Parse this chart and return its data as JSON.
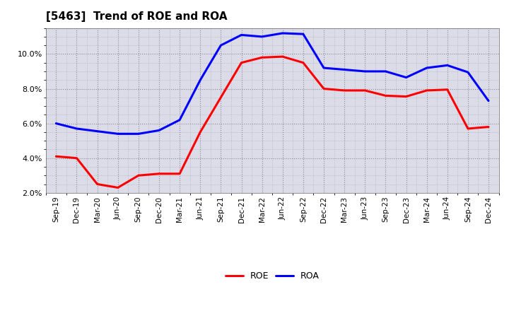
{
  "title": "[5463]  Trend of ROE and ROA",
  "labels": [
    "Sep-19",
    "Dec-19",
    "Mar-20",
    "Jun-20",
    "Sep-20",
    "Dec-20",
    "Mar-21",
    "Jun-21",
    "Sep-21",
    "Dec-21",
    "Mar-22",
    "Jun-22",
    "Sep-22",
    "Dec-22",
    "Mar-23",
    "Jun-23",
    "Sep-23",
    "Dec-23",
    "Mar-24",
    "Jun-24",
    "Sep-24",
    "Dec-24"
  ],
  "ROE": [
    4.1,
    4.0,
    2.5,
    2.3,
    3.0,
    3.1,
    3.1,
    5.5,
    7.5,
    9.5,
    9.8,
    9.85,
    9.5,
    8.0,
    7.9,
    7.9,
    7.6,
    7.55,
    7.9,
    7.95,
    5.7,
    5.8
  ],
  "ROA": [
    6.0,
    5.7,
    5.55,
    5.4,
    5.4,
    5.6,
    6.2,
    8.5,
    10.5,
    11.1,
    11.0,
    11.2,
    11.15,
    9.2,
    9.1,
    9.0,
    9.0,
    8.65,
    9.2,
    9.35,
    8.95,
    7.3
  ],
  "roe_color": "#ff0000",
  "roa_color": "#0000ff",
  "background_color": "#ffffff",
  "plot_bg_color": "#dcdce8",
  "grid_color": "#888899",
  "ylim": [
    2.0,
    11.5
  ],
  "yticks": [
    2.0,
    4.0,
    6.0,
    8.0,
    10.0
  ],
  "title_fontsize": 11,
  "legend_fontsize": 9,
  "line_width": 2.2
}
